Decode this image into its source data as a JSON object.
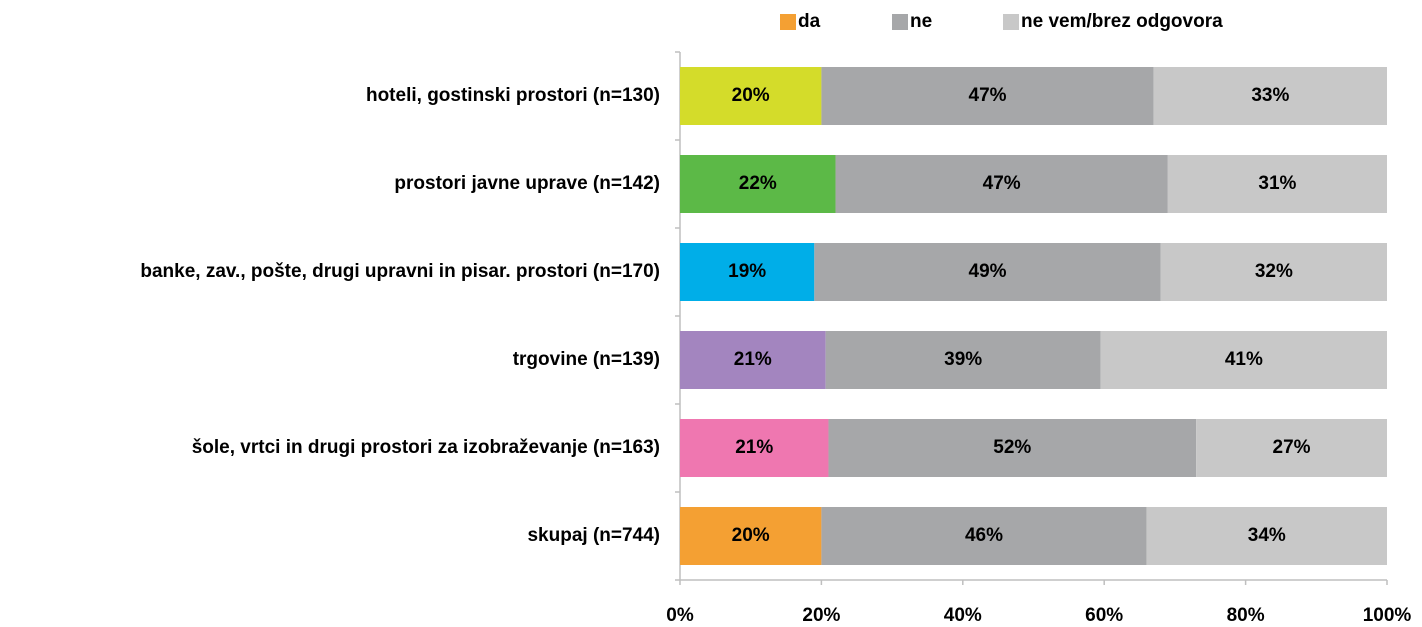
{
  "chart_data": {
    "type": "stacked_bar_horizontal",
    "categories": [
      "hoteli, gostinski prostori (n=130)",
      "prostori javne uprave (n=142)",
      "banke, zav., pošte, drugi upravni in pisar. prostori (n=170)",
      "trgovine (n=139)",
      "šole, vrtci in drugi prostori za izobraževanje (n=163)",
      "skupaj (n=744)"
    ],
    "series": [
      {
        "name": "da",
        "color": "#f4a033",
        "colors": [
          "#d4dc2a",
          "#5cb947",
          "#00aee8",
          "#a385bf",
          "#ef77b0",
          "#f4a033"
        ],
        "values": [
          20,
          22,
          19,
          20.6,
          21,
          20
        ],
        "value_labels": [
          "20%",
          "22%",
          "19%",
          "21%",
          "21%",
          "20%"
        ]
      },
      {
        "name": "ne",
        "color": "#a6a7a9",
        "values": [
          47,
          47,
          49,
          38.9,
          52,
          46
        ],
        "value_labels": [
          "47%",
          "47%",
          "49%",
          "39%",
          "52%",
          "46%"
        ]
      },
      {
        "name": "ne vem/brez odgovora",
        "color": "#c8c8c8",
        "values": [
          33,
          31,
          32,
          40.5,
          27,
          34
        ],
        "value_labels": [
          "33%",
          "31%",
          "32%",
          "41%",
          "27%",
          "34%"
        ]
      }
    ],
    "xlim": [
      0,
      100
    ],
    "xticks": [
      {
        "value": 0,
        "label": "0%"
      },
      {
        "value": 20,
        "label": "20%"
      },
      {
        "value": 40,
        "label": "40%"
      },
      {
        "value": 60,
        "label": "60%"
      },
      {
        "value": 80,
        "label": "80%"
      },
      {
        "value": 100,
        "label": "100%"
      }
    ],
    "legend": "top"
  }
}
